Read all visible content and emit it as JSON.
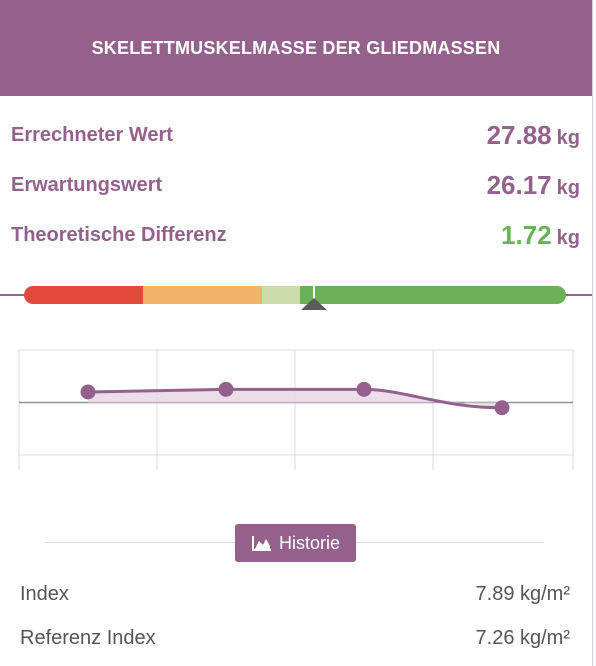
{
  "header": {
    "title": "SKELETTMUSKELMASSE DER GLIEDMASSEN"
  },
  "stats": [
    {
      "label": "Errechneter Wert",
      "value": "27.88",
      "unit": "kg"
    },
    {
      "label": "Erwartungswert",
      "value": "26.17",
      "unit": "kg"
    },
    {
      "label": "Theoretische Differenz",
      "value": "1.72",
      "unit": "kg"
    }
  ],
  "gauge": {
    "segment_colors": [
      "#e0493c",
      "#f2b36d",
      "#cddcab",
      "#6bb157"
    ],
    "segment_fractions": [
      0.22,
      0.22,
      0.07,
      0.49
    ],
    "marker_fraction": 0.535
  },
  "chart_data": {
    "type": "line",
    "x": [
      1,
      2,
      3,
      4
    ],
    "values": [
      0.4,
      0.5,
      0.5,
      -0.2
    ],
    "ylim": [
      -2,
      2
    ],
    "grid": true,
    "line_color": "#94618d",
    "fill_color": "#e7d6e4",
    "reference_line": 0
  },
  "historie": {
    "label": "Historie",
    "icon": "area-chart-icon"
  },
  "footer": [
    {
      "label": "Index",
      "value": "7.89 kg/m²"
    },
    {
      "label": "Referenz Index",
      "value": "7.26 kg/m²"
    }
  ]
}
